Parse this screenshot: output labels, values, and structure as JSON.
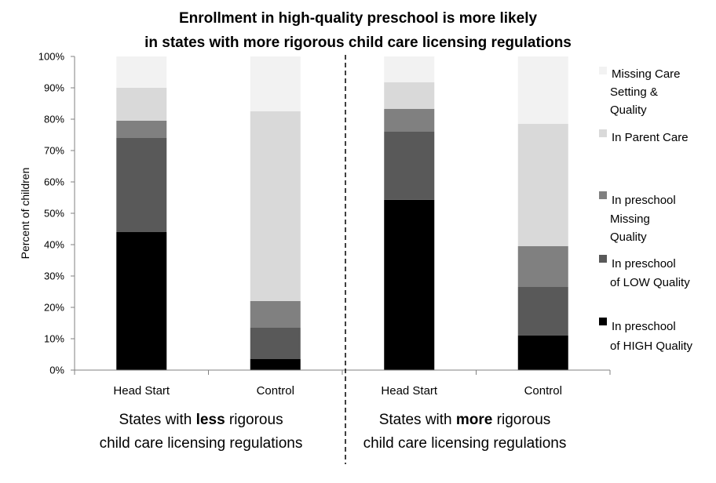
{
  "chart_data": {
    "type": "bar",
    "stacked": true,
    "title": [
      "Enrollment in high-quality preschool is more likely",
      "in states with more rigorous child care licensing regulations"
    ],
    "ylabel": "Percent of children",
    "ylim": [
      0,
      100
    ],
    "yticks": [
      "0%",
      "10%",
      "20%",
      "30%",
      "40%",
      "50%",
      "60%",
      "70%",
      "80%",
      "90%",
      "100%"
    ],
    "categories": [
      "Head Start",
      "Control",
      "Head Start",
      "Control"
    ],
    "groups": [
      {
        "parts": [
          "States with ",
          "less",
          " rigorous",
          "child care licensing regulations"
        ]
      },
      {
        "parts": [
          "States with ",
          "more",
          " rigorous",
          "child care licensing regulations"
        ]
      }
    ],
    "series": [
      {
        "name": [
          "In preschool",
          "of HIGH Quality"
        ],
        "color": "#000000",
        "values": [
          44,
          3.5,
          54.3,
          11
        ]
      },
      {
        "name": [
          "In preschool",
          "of LOW Quality"
        ],
        "color": "#595959",
        "values": [
          30,
          10,
          21.7,
          15.5
        ]
      },
      {
        "name": [
          "In preschool",
          "Missing",
          "Quality"
        ],
        "color": "#808080",
        "values": [
          5.5,
          8.5,
          7.3,
          13
        ]
      },
      {
        "name": [
          "In Parent Care"
        ],
        "color": "#d9d9d9",
        "values": [
          10.5,
          60.5,
          8.5,
          39
        ]
      },
      {
        "name": [
          "Missing Care",
          "Setting &",
          "Quality"
        ],
        "color": "#f2f2f2",
        "values": [
          10,
          17.5,
          8.2,
          21.5
        ]
      }
    ],
    "legend": "right",
    "grid": false
  }
}
